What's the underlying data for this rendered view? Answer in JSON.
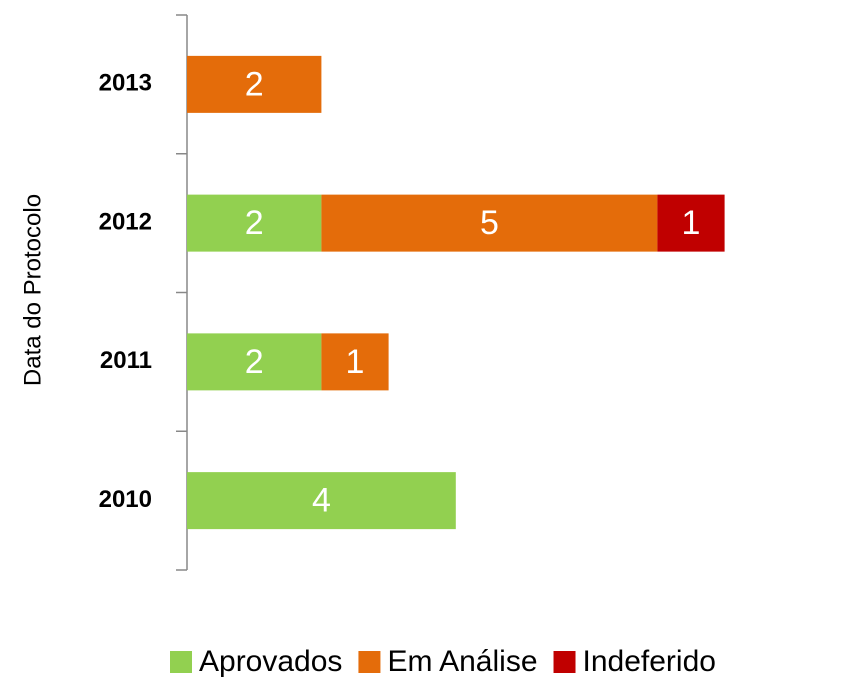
{
  "chart_data": {
    "type": "stacked-barh",
    "y_label": "Data do Protocolo",
    "categories": [
      "2010",
      "2011",
      "2012",
      "2013"
    ],
    "series": [
      {
        "name": "Aprovados",
        "color": "#92d050",
        "values": [
          4,
          2,
          2,
          null
        ]
      },
      {
        "name": "Em Análise",
        "color": "#e46c0a",
        "values": [
          null,
          1,
          5,
          2
        ]
      },
      {
        "name": "Indeferido",
        "color": "#c00000",
        "values": [
          null,
          null,
          1,
          null
        ]
      }
    ],
    "legend": "bottom"
  }
}
